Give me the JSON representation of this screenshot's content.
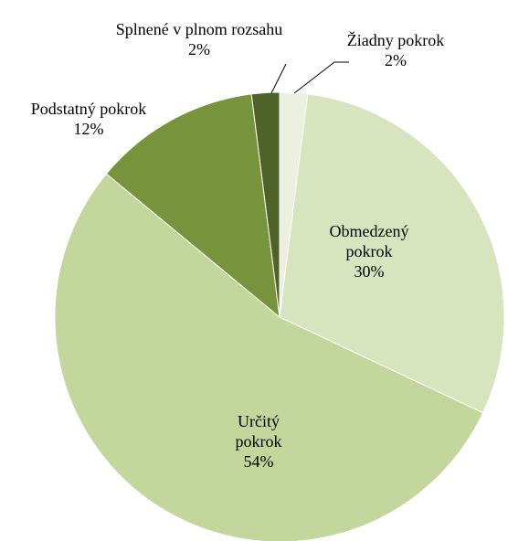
{
  "chart_data": {
    "type": "pie",
    "categories": [
      "Žiadny pokrok",
      "Obmedzený pokrok",
      "Určitý pokrok",
      "Podstatný pokrok",
      "Splnené v plnom rozsahu"
    ],
    "values": [
      2,
      30,
      54,
      12,
      2
    ],
    "value_labels": [
      "2%",
      "30%",
      "54%",
      "12%",
      "2%"
    ],
    "colors": [
      "#ebf1de",
      "#d7e4bd",
      "#c3d69b",
      "#77933c",
      "#4f6228"
    ]
  }
}
